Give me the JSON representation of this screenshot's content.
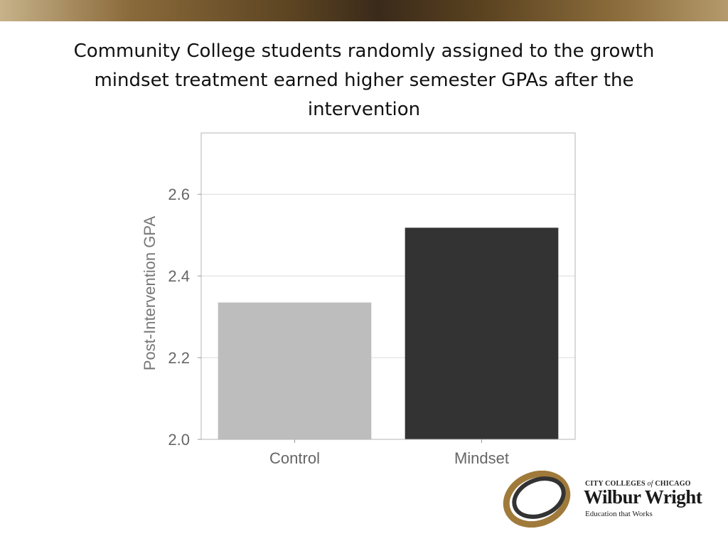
{
  "slide": {
    "title": "Community College students randomly assigned to the growth mindset treatment earned higher semester GPAs after the intervention"
  },
  "chart_data": {
    "type": "bar",
    "categories": [
      "Control",
      "Mindset"
    ],
    "values": [
      2.335,
      2.518
    ],
    "bar_colors": [
      "#bdbdbd",
      "#333333"
    ],
    "ylabel": "Post-Intervention GPA",
    "xlabel": "",
    "ylim": [
      2.0,
      2.75
    ],
    "yticks": [
      "2.0",
      "2.2",
      "2.4",
      "2.6"
    ],
    "ytick_values": [
      2.0,
      2.2,
      2.4,
      2.6
    ],
    "grid": true
  },
  "logo": {
    "line1_a": "CITY COLLEGES ",
    "line1_of": "of",
    "line1_b": " CHICAGO",
    "name": "Wilbur Wright",
    "tagline": "Education that Works"
  },
  "colors": {
    "top_band_dark": "#3a2a1a",
    "top_band_light": "#c7b28a",
    "logo_swoosh_gold": "#a07a3a",
    "logo_swoosh_dark": "#333333"
  }
}
